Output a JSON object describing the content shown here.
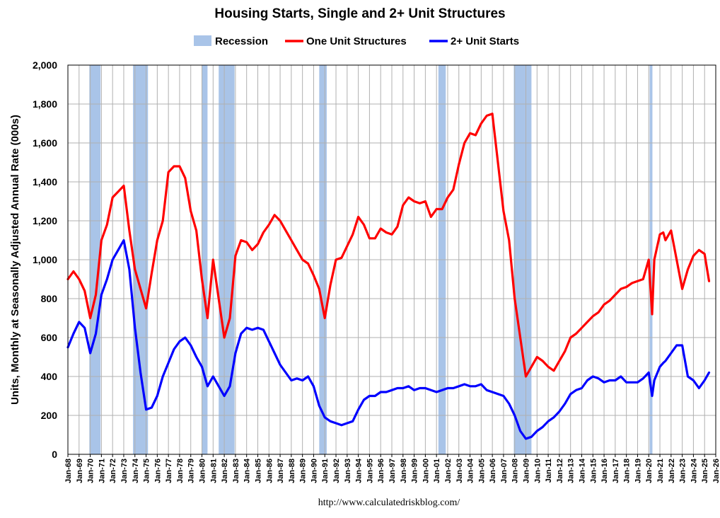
{
  "chart_data": {
    "type": "line",
    "title": "Housing Starts, Single and 2+ Unit Structures",
    "ylabel": "Units, Monthly at Seasonally Adjusted Annual Rate (000s)",
    "source": "http://www.calculatedriskblog.com/",
    "ylim": [
      0,
      2000
    ],
    "yticks": [
      "0",
      "200",
      "400",
      "600",
      "800",
      "1,000",
      "1,200",
      "1,400",
      "1,600",
      "1,800",
      "2,000"
    ],
    "xlim": [
      1968.0,
      2026.0
    ],
    "xticks": [
      "Jan-68",
      "Jan-69",
      "Jan-70",
      "Jan-71",
      "Jan-72",
      "Jan-73",
      "Jan-74",
      "Jan-75",
      "Jan-76",
      "Jan-77",
      "Jan-78",
      "Jan-79",
      "Jan-80",
      "Jan-81",
      "Jan-82",
      "Jan-83",
      "Jan-84",
      "Jan-85",
      "Jan-86",
      "Jan-87",
      "Jan-88",
      "Jan-89",
      "Jan-90",
      "Jan-91",
      "Jan-92",
      "Jan-93",
      "Jan-94",
      "Jan-95",
      "Jan-96",
      "Jan-97",
      "Jan-98",
      "Jan-99",
      "Jan-00",
      "Jan-01",
      "Jan-02",
      "Jan-03",
      "Jan-04",
      "Jan-05",
      "Jan-06",
      "Jan-07",
      "Jan-08",
      "Jan-09",
      "Jan-10",
      "Jan-11",
      "Jan-12",
      "Jan-13",
      "Jan-14",
      "Jan-15",
      "Jan-16",
      "Jan-17",
      "Jan-18",
      "Jan-19",
      "Jan-20",
      "Jan-21",
      "Jan-22",
      "Jan-23",
      "Jan-24",
      "Jan-25",
      "Jan-26"
    ],
    "grid": true,
    "legend_placement": "top-center",
    "legend": [
      {
        "name": "Recession",
        "kind": "box",
        "color": "#a9c4e8"
      },
      {
        "name": "One Unit Structures",
        "kind": "line",
        "color": "#ff0000"
      },
      {
        "name": "2+ Unit Starts",
        "kind": "line",
        "color": "#0000ff"
      }
    ],
    "recessions": [
      [
        1969.92,
        1970.92
      ],
      [
        1973.83,
        1975.17
      ],
      [
        1980.0,
        1980.5
      ],
      [
        1981.5,
        1982.92
      ],
      [
        1990.5,
        1991.17
      ],
      [
        2001.17,
        2001.83
      ],
      [
        2007.92,
        2009.5
      ],
      [
        2020.08,
        2020.33
      ]
    ],
    "series": [
      {
        "name": "One Unit Structures",
        "color": "#ff0000",
        "x": [
          1968.0,
          1968.5,
          1969.0,
          1969.5,
          1970.0,
          1970.5,
          1971.0,
          1971.5,
          1972.0,
          1972.5,
          1973.0,
          1973.5,
          1974.0,
          1974.5,
          1975.0,
          1975.5,
          1976.0,
          1976.5,
          1977.0,
          1977.5,
          1978.0,
          1978.5,
          1979.0,
          1979.5,
          1980.0,
          1980.5,
          1981.0,
          1981.5,
          1982.0,
          1982.5,
          1983.0,
          1983.5,
          1984.0,
          1984.5,
          1985.0,
          1985.5,
          1986.0,
          1986.5,
          1987.0,
          1987.5,
          1988.0,
          1988.5,
          1989.0,
          1989.5,
          1990.0,
          1990.5,
          1991.0,
          1991.5,
          1992.0,
          1992.5,
          1993.0,
          1993.5,
          1994.0,
          1994.5,
          1995.0,
          1995.5,
          1996.0,
          1996.5,
          1997.0,
          1997.5,
          1998.0,
          1998.5,
          1999.0,
          1999.5,
          2000.0,
          2000.5,
          2001.0,
          2001.5,
          2002.0,
          2002.5,
          2003.0,
          2003.5,
          2004.0,
          2004.5,
          2005.0,
          2005.5,
          2006.0,
          2006.5,
          2007.0,
          2007.5,
          2008.0,
          2008.5,
          2009.0,
          2009.5,
          2010.0,
          2010.5,
          2011.0,
          2011.5,
          2012.0,
          2012.5,
          2013.0,
          2013.5,
          2014.0,
          2014.5,
          2015.0,
          2015.5,
          2016.0,
          2016.5,
          2017.0,
          2017.5,
          2018.0,
          2018.5,
          2019.0,
          2019.5,
          2020.0,
          2020.3,
          2020.5,
          2021.0,
          2021.3,
          2021.5,
          2022.0,
          2022.5,
          2023.0,
          2023.5,
          2024.0,
          2024.5,
          2025.0,
          2025.4
        ],
        "y": [
          900,
          940,
          900,
          840,
          700,
          820,
          1100,
          1180,
          1320,
          1350,
          1380,
          1150,
          950,
          850,
          750,
          930,
          1100,
          1200,
          1450,
          1480,
          1480,
          1420,
          1250,
          1150,
          900,
          700,
          1000,
          800,
          600,
          700,
          1020,
          1100,
          1090,
          1050,
          1080,
          1140,
          1180,
          1230,
          1200,
          1150,
          1100,
          1050,
          1000,
          980,
          920,
          850,
          700,
          870,
          1000,
          1010,
          1070,
          1130,
          1220,
          1180,
          1110,
          1110,
          1160,
          1140,
          1130,
          1170,
          1280,
          1320,
          1300,
          1290,
          1300,
          1220,
          1260,
          1260,
          1320,
          1360,
          1490,
          1600,
          1650,
          1640,
          1700,
          1740,
          1750,
          1500,
          1250,
          1100,
          800,
          600,
          400,
          450,
          500,
          480,
          450,
          430,
          480,
          530,
          600,
          620,
          650,
          680,
          710,
          730,
          770,
          790,
          820,
          850,
          860,
          880,
          890,
          900,
          1000,
          720,
          1000,
          1130,
          1140,
          1100,
          1150,
          1000,
          850,
          950,
          1020,
          1050,
          1030,
          890
        ]
      },
      {
        "name": "2+ Unit Starts",
        "color": "#0000ff",
        "x": [
          1968.0,
          1968.5,
          1969.0,
          1969.5,
          1970.0,
          1970.5,
          1971.0,
          1971.5,
          1972.0,
          1972.5,
          1973.0,
          1973.5,
          1974.0,
          1974.5,
          1975.0,
          1975.5,
          1976.0,
          1976.5,
          1977.0,
          1977.5,
          1978.0,
          1978.5,
          1979.0,
          1979.5,
          1980.0,
          1980.5,
          1981.0,
          1981.5,
          1982.0,
          1982.5,
          1983.0,
          1983.5,
          1984.0,
          1984.5,
          1985.0,
          1985.5,
          1986.0,
          1986.5,
          1987.0,
          1987.5,
          1988.0,
          1988.5,
          1989.0,
          1989.5,
          1990.0,
          1990.5,
          1991.0,
          1991.5,
          1992.0,
          1992.5,
          1993.0,
          1993.5,
          1994.0,
          1994.5,
          1995.0,
          1995.5,
          1996.0,
          1996.5,
          1997.0,
          1997.5,
          1998.0,
          1998.5,
          1999.0,
          1999.5,
          2000.0,
          2000.5,
          2001.0,
          2001.5,
          2002.0,
          2002.5,
          2003.0,
          2003.5,
          2004.0,
          2004.5,
          2005.0,
          2005.5,
          2006.0,
          2006.5,
          2007.0,
          2007.5,
          2008.0,
          2008.5,
          2009.0,
          2009.5,
          2010.0,
          2010.5,
          2011.0,
          2011.5,
          2012.0,
          2012.5,
          2013.0,
          2013.5,
          2014.0,
          2014.5,
          2015.0,
          2015.5,
          2016.0,
          2016.5,
          2017.0,
          2017.5,
          2018.0,
          2018.5,
          2019.0,
          2019.5,
          2020.0,
          2020.3,
          2020.5,
          2021.0,
          2021.3,
          2021.5,
          2022.0,
          2022.5,
          2023.0,
          2023.5,
          2024.0,
          2024.5,
          2025.0,
          2025.4
        ],
        "y": [
          550,
          620,
          680,
          650,
          520,
          620,
          820,
          900,
          1000,
          1050,
          1100,
          950,
          650,
          420,
          230,
          240,
          300,
          400,
          470,
          540,
          580,
          600,
          560,
          500,
          450,
          350,
          400,
          350,
          300,
          350,
          520,
          620,
          650,
          640,
          650,
          640,
          580,
          520,
          460,
          420,
          380,
          390,
          380,
          400,
          350,
          250,
          190,
          170,
          160,
          150,
          160,
          170,
          230,
          280,
          300,
          300,
          320,
          320,
          330,
          340,
          340,
          350,
          330,
          340,
          340,
          330,
          320,
          330,
          340,
          340,
          350,
          360,
          350,
          350,
          360,
          330,
          320,
          310,
          300,
          260,
          200,
          120,
          80,
          90,
          120,
          140,
          170,
          190,
          220,
          260,
          310,
          330,
          340,
          380,
          400,
          390,
          370,
          380,
          380,
          400,
          370,
          370,
          370,
          390,
          420,
          300,
          380,
          450,
          470,
          480,
          520,
          560,
          560,
          400,
          380,
          340,
          380,
          420
        ]
      }
    ]
  }
}
